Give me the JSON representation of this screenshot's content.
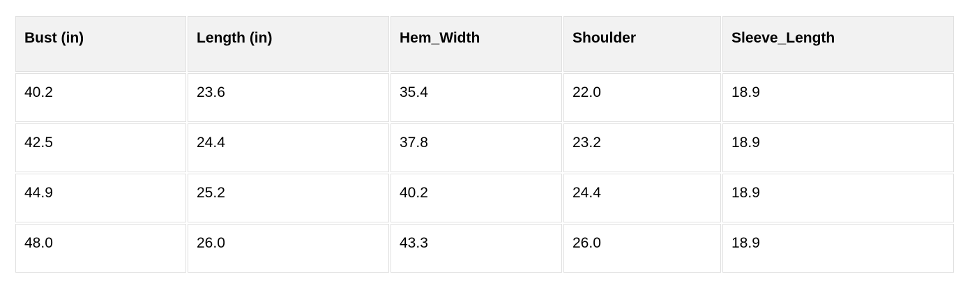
{
  "table": {
    "columns": [
      "Bust (in)",
      "Length (in)",
      "Hem_Width",
      "Shoulder",
      "Sleeve_Length"
    ],
    "rows": [
      [
        "40.2",
        "23.6",
        "35.4",
        "22.0",
        "18.9"
      ],
      [
        "42.5",
        "24.4",
        "37.8",
        "23.2",
        "18.9"
      ],
      [
        "44.9",
        "25.2",
        "40.2",
        "24.4",
        "18.9"
      ],
      [
        "48.0",
        "26.0",
        "43.3",
        "26.0",
        "18.9"
      ]
    ]
  },
  "chart_data": {
    "type": "table",
    "title": "",
    "columns": [
      "Bust (in)",
      "Length (in)",
      "Hem_Width",
      "Shoulder",
      "Sleeve_Length"
    ],
    "rows": [
      [
        40.2,
        23.6,
        35.4,
        22.0,
        18.9
      ],
      [
        42.5,
        24.4,
        37.8,
        23.2,
        18.9
      ],
      [
        44.9,
        25.2,
        40.2,
        24.4,
        18.9
      ],
      [
        48.0,
        26.0,
        43.3,
        26.0,
        18.9
      ]
    ]
  },
  "colors": {
    "header_background": "#f2f2f2",
    "cell_border": "#e0e0e0",
    "text": "#000000",
    "page_background": "#ffffff"
  }
}
